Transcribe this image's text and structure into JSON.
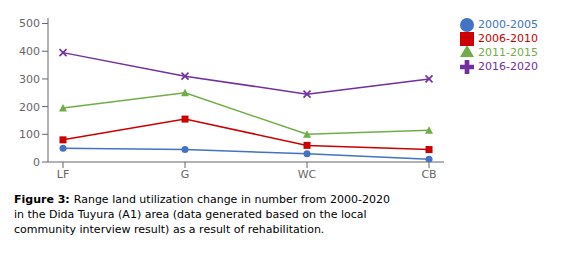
{
  "chart_data": {
    "type": "line",
    "categories": [
      "LF",
      "G",
      "WC",
      "CB"
    ],
    "series": [
      {
        "name": "2000-2005",
        "color": "#4472C4",
        "marker": "circle",
        "values": [
          50,
          45,
          30,
          10
        ]
      },
      {
        "name": "2006-2010",
        "color": "#CC0000",
        "marker": "square",
        "values": [
          80,
          155,
          60,
          45
        ]
      },
      {
        "name": "2011-2015",
        "color": "#70AD47",
        "marker": "triangle",
        "values": [
          195,
          250,
          100,
          115
        ]
      },
      {
        "name": "2016-2020",
        "color": "#7030A0",
        "marker": "cross",
        "values": [
          395,
          310,
          245,
          300
        ]
      }
    ],
    "ylim": [
      0,
      520
    ],
    "yticks": [
      0,
      100,
      200,
      300,
      400,
      500
    ],
    "grid": false,
    "legend": "right",
    "annotations": [
      "Figure 3:",
      "Range land utilization change in number from 2000-2020",
      "in the Dida Tuyura (A1) area (data generated based on the local",
      "community interview result) as a result of rehabilitation."
    ]
  }
}
